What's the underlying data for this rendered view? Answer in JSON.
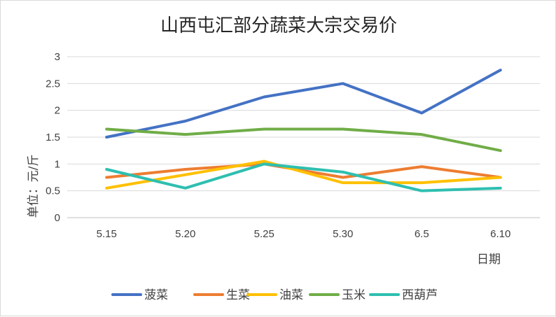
{
  "chart_data": {
    "type": "line",
    "title": "山西屯汇部分蔬菜大宗交易价",
    "xlabel": "日期",
    "ylabel": "单位：元/斤",
    "categories": [
      "5.15",
      "5.20",
      "5.25",
      "5.30",
      "6.5",
      "6.10"
    ],
    "ylim": [
      0,
      3
    ],
    "yticks": [
      "0",
      "0.5",
      "1",
      "1.5",
      "2",
      "2.5",
      "3"
    ],
    "grid": true,
    "legend_position": "bottom",
    "series": [
      {
        "name": "菠菜",
        "color": "#4472c4",
        "values": [
          1.5,
          1.8,
          2.25,
          2.5,
          1.95,
          2.75
        ]
      },
      {
        "name": "生菜",
        "color": "#ed7d31",
        "values": [
          0.75,
          0.9,
          1.0,
          0.75,
          0.95,
          0.75
        ]
      },
      {
        "name": "油菜",
        "color": "#ffc000",
        "values": [
          0.55,
          0.8,
          1.05,
          0.65,
          0.65,
          0.75
        ]
      },
      {
        "name": "玉米",
        "color": "#70ad47",
        "values": [
          1.65,
          1.55,
          1.65,
          1.65,
          1.55,
          1.25
        ]
      },
      {
        "name": "西葫芦",
        "color": "#2ebfb0",
        "values": [
          0.9,
          0.55,
          1.0,
          0.85,
          0.5,
          0.55
        ]
      }
    ]
  }
}
